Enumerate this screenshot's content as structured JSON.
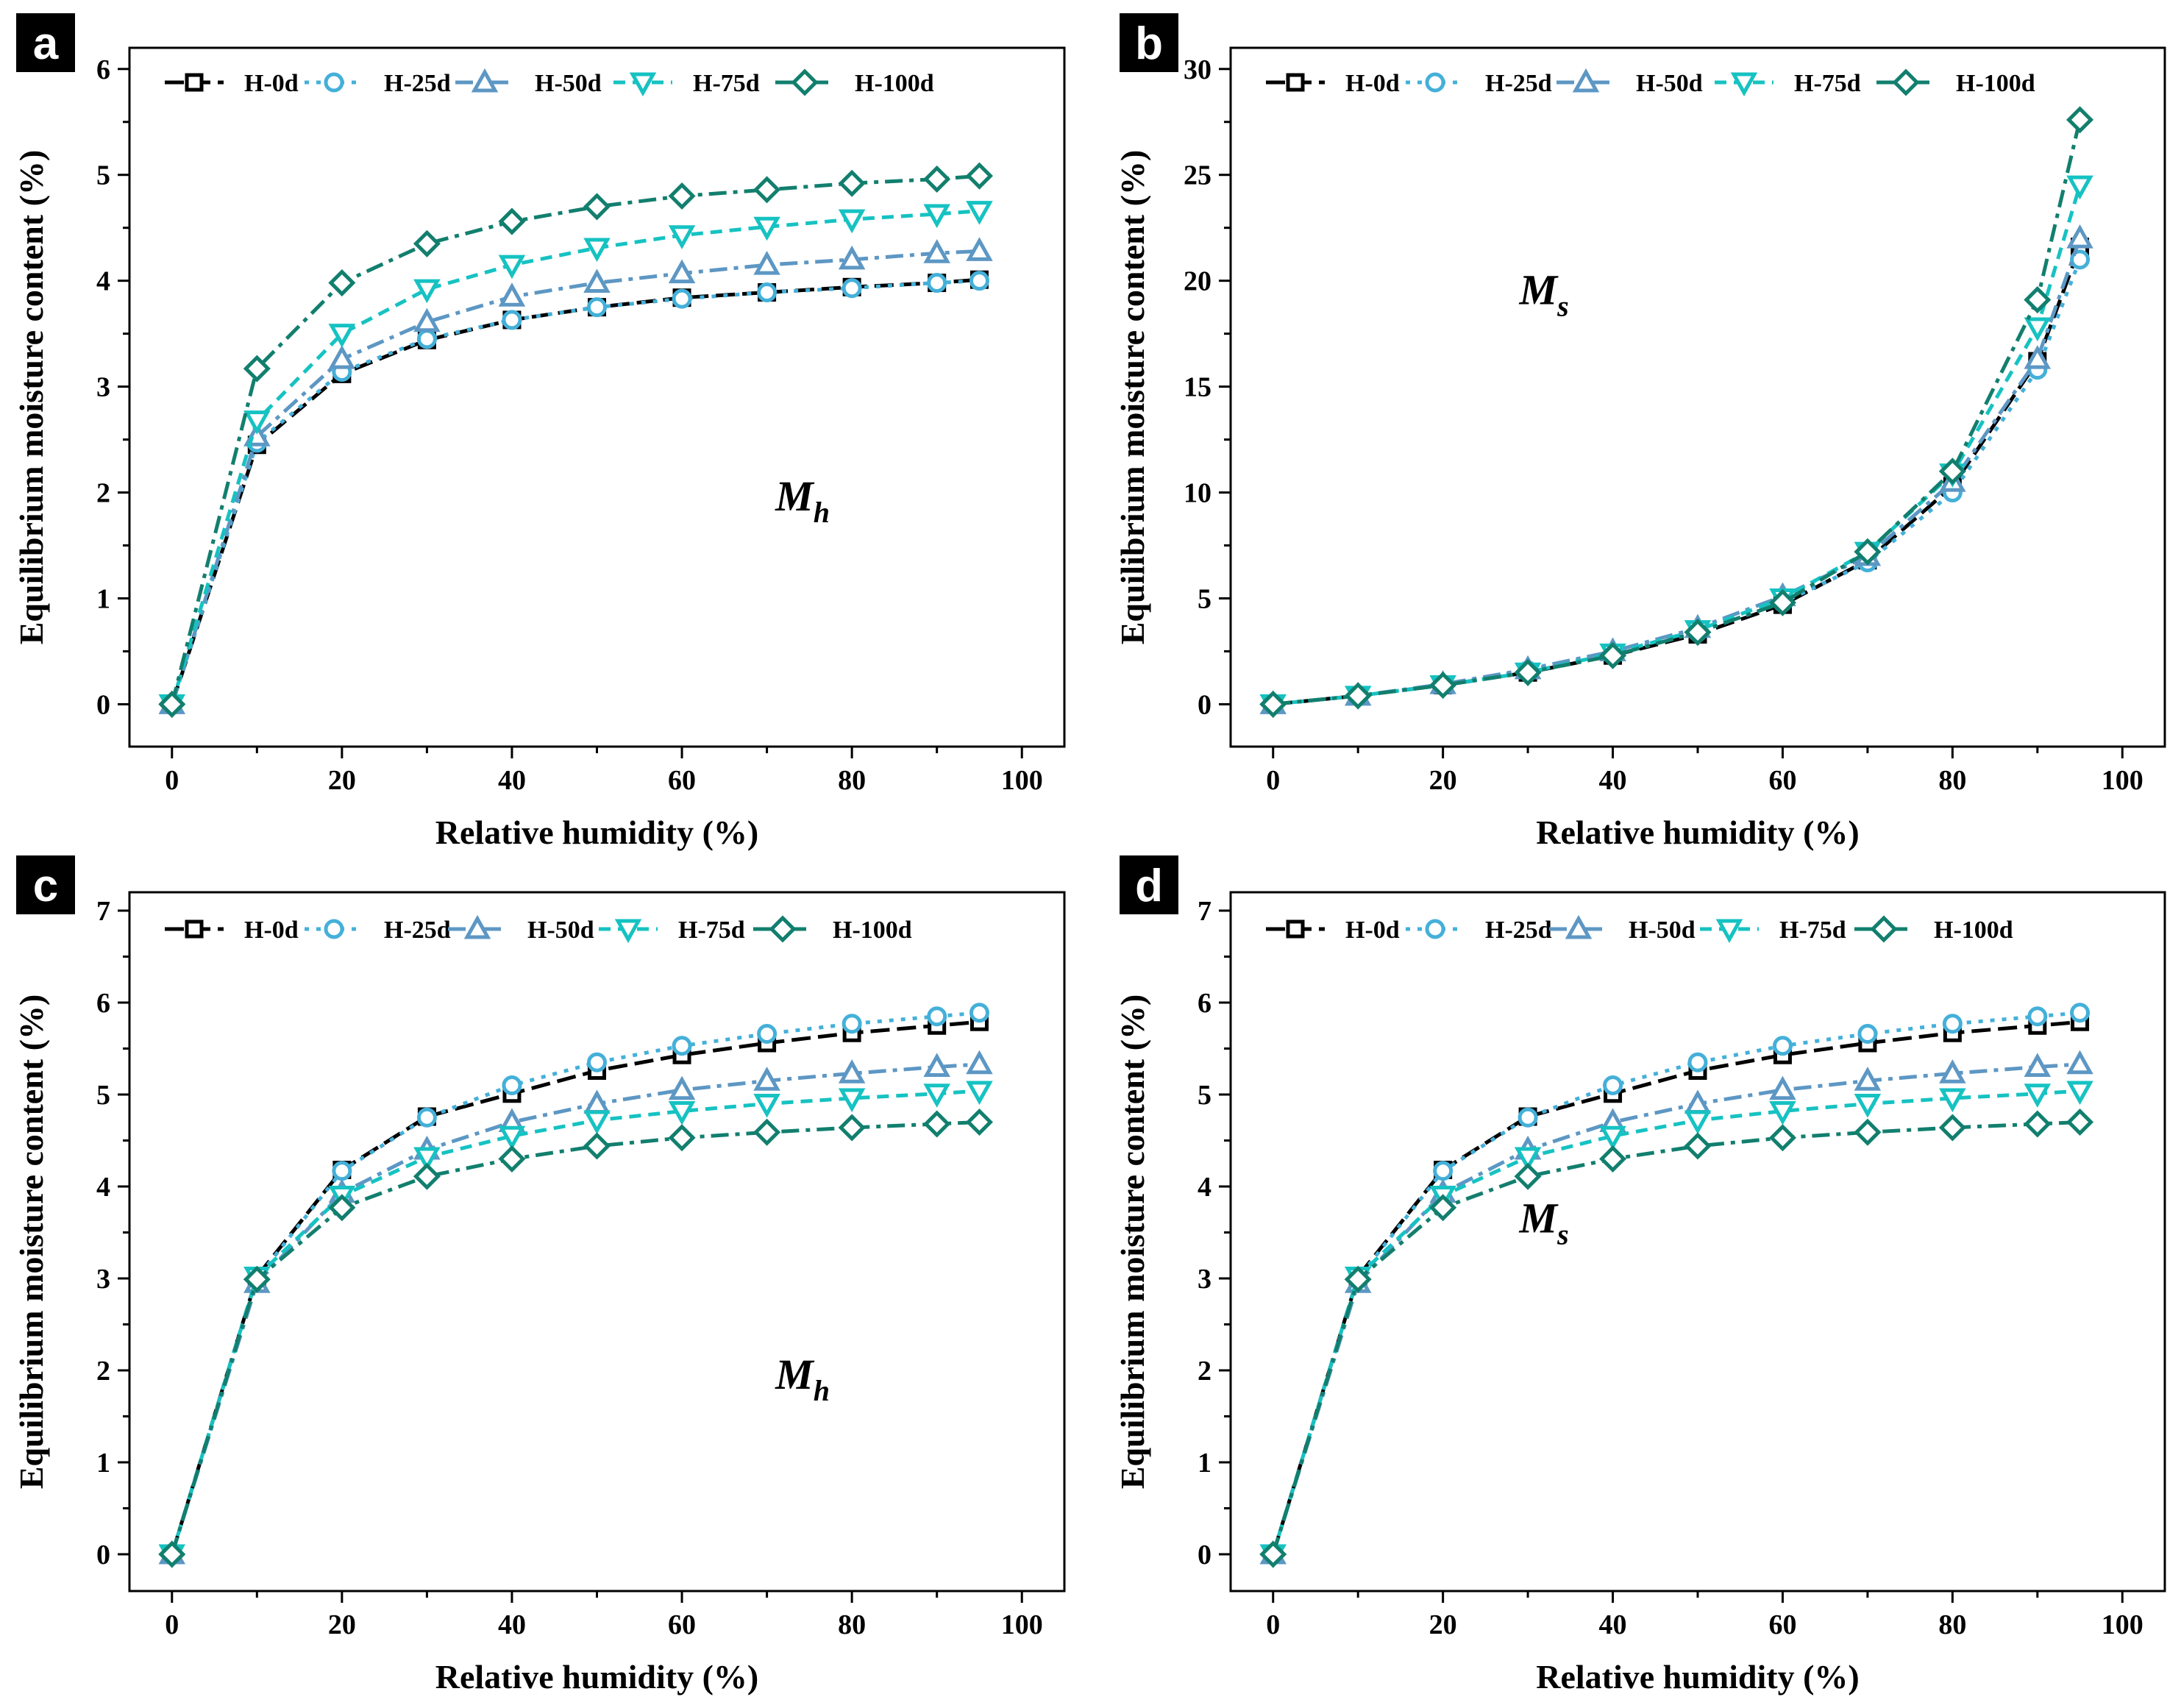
{
  "figure": {
    "colors": {
      "H-0d": "#000000",
      "H-25d": "#44b0d9",
      "H-50d": "#5d97c4",
      "H-75d": "#16c2c2",
      "H-100d": "#127f6e",
      "panel_label_bg": "#000000",
      "panel_label_text": "#ffffff",
      "axis": "#000000"
    },
    "series_styles": {
      "H-0d": {
        "marker": "square",
        "dash": "long-dash"
      },
      "H-25d": {
        "marker": "circle",
        "dash": "dotted"
      },
      "H-50d": {
        "marker": "triangle-up",
        "dash": "dash-dot"
      },
      "H-75d": {
        "marker": "triangle-down",
        "dash": "dashed"
      },
      "H-100d": {
        "marker": "diamond",
        "dash": "dash-dot"
      }
    }
  },
  "chart_data": [
    {
      "panel": "a",
      "type": "line",
      "xlabel": "Relative humidity (%)",
      "ylabel": "Equilibrium moisture content (%)",
      "xlim": [
        -5,
        105
      ],
      "ylim": [
        -0.4,
        6.2
      ],
      "xticks": [
        "0",
        "20",
        "40",
        "60",
        "80",
        "100"
      ],
      "yticks": [
        "0",
        "1",
        "2",
        "3",
        "4",
        "5",
        "6"
      ],
      "annotation": {
        "main": "M",
        "sub": "h",
        "anchor": [
          71,
          1.83
        ]
      },
      "x": [
        0,
        10,
        20,
        30,
        40,
        50,
        60,
        70,
        80,
        90,
        95
      ],
      "series": [
        {
          "name": "H-0d",
          "values": [
            0,
            2.45,
            3.12,
            3.44,
            3.63,
            3.75,
            3.84,
            3.89,
            3.94,
            3.98,
            4.01
          ]
        },
        {
          "name": "H-25d",
          "values": [
            0,
            2.47,
            3.14,
            3.45,
            3.63,
            3.75,
            3.83,
            3.89,
            3.93,
            3.98,
            4.0
          ]
        },
        {
          "name": "H-50d",
          "values": [
            0,
            2.53,
            3.26,
            3.61,
            3.85,
            3.98,
            4.07,
            4.15,
            4.2,
            4.26,
            4.28
          ]
        },
        {
          "name": "H-75d",
          "values": [
            0,
            2.68,
            3.5,
            3.92,
            4.15,
            4.31,
            4.43,
            4.51,
            4.58,
            4.63,
            4.66
          ]
        },
        {
          "name": "H-100d",
          "values": [
            0,
            3.17,
            3.98,
            4.35,
            4.56,
            4.7,
            4.8,
            4.86,
            4.92,
            4.96,
            4.99
          ]
        }
      ]
    },
    {
      "panel": "b",
      "type": "line",
      "xlabel": "Relative humidity (%)",
      "ylabel": "Equilibrium moisture content (%)",
      "xlim": [
        -5,
        105
      ],
      "ylim": [
        -2,
        31
      ],
      "xticks": [
        "0",
        "20",
        "40",
        "60",
        "80",
        "100"
      ],
      "yticks": [
        "0",
        "5",
        "10",
        "15",
        "20",
        "25",
        "30"
      ],
      "annotation": {
        "main": "M",
        "sub": "s",
        "anchor": [
          29,
          18.9
        ]
      },
      "x": [
        0,
        10,
        20,
        30,
        40,
        50,
        60,
        70,
        80,
        90,
        95
      ],
      "series": [
        {
          "name": "H-0d",
          "values": [
            0,
            0.4,
            0.9,
            1.5,
            2.3,
            3.3,
            4.7,
            6.8,
            10.3,
            16.2,
            21.6
          ]
        },
        {
          "name": "H-25d",
          "values": [
            0,
            0.4,
            0.9,
            1.6,
            2.4,
            3.4,
            4.8,
            6.7,
            10.0,
            15.8,
            21.0
          ]
        },
        {
          "name": "H-50d",
          "values": [
            0,
            0.4,
            0.95,
            1.65,
            2.5,
            3.6,
            5.1,
            7.0,
            10.5,
            16.3,
            22.0
          ]
        },
        {
          "name": "H-75d",
          "values": [
            0,
            0.4,
            0.9,
            1.5,
            2.4,
            3.5,
            5.0,
            7.2,
            10.9,
            17.8,
            24.5
          ]
        },
        {
          "name": "H-100d",
          "values": [
            0,
            0.4,
            0.9,
            1.5,
            2.3,
            3.4,
            4.8,
            7.2,
            11.0,
            19.1,
            27.6
          ]
        }
      ]
    },
    {
      "panel": "c",
      "type": "line",
      "xlabel": "Relative humidity (%)",
      "ylabel": "Equilibrium moisture content (%)",
      "xlim": [
        -5,
        105
      ],
      "ylim": [
        -0.4,
        7.2
      ],
      "xticks": [
        "0",
        "20",
        "40",
        "60",
        "80",
        "100"
      ],
      "yticks": [
        "0",
        "1",
        "2",
        "3",
        "4",
        "5",
        "6",
        "7"
      ],
      "annotation": {
        "main": "M",
        "sub": "h",
        "anchor": [
          71,
          1.8
        ]
      },
      "x": [
        0,
        10,
        20,
        30,
        40,
        50,
        60,
        70,
        80,
        90,
        95
      ],
      "series": [
        {
          "name": "H-0d",
          "values": [
            0,
            3.02,
            4.18,
            4.76,
            5.01,
            5.26,
            5.43,
            5.56,
            5.67,
            5.75,
            5.79
          ]
        },
        {
          "name": "H-25d",
          "values": [
            0,
            3.0,
            4.17,
            4.75,
            5.1,
            5.35,
            5.53,
            5.66,
            5.77,
            5.85,
            5.89
          ]
        },
        {
          "name": "H-50d",
          "values": [
            0,
            2.95,
            3.93,
            4.4,
            4.7,
            4.9,
            5.05,
            5.15,
            5.23,
            5.3,
            5.33
          ]
        },
        {
          "name": "H-75d",
          "values": [
            0,
            3.02,
            3.9,
            4.32,
            4.55,
            4.72,
            4.82,
            4.9,
            4.96,
            5.01,
            5.04
          ]
        },
        {
          "name": "H-100d",
          "values": [
            0,
            2.99,
            3.77,
            4.11,
            4.3,
            4.44,
            4.53,
            4.59,
            4.64,
            4.68,
            4.7
          ]
        }
      ]
    },
    {
      "panel": "d",
      "type": "line",
      "xlabel": "Relative humidity (%)",
      "ylabel": "Equilibrium moisture content (%)",
      "xlim": [
        -5,
        105
      ],
      "ylim": [
        -0.4,
        7.2
      ],
      "xticks": [
        "0",
        "20",
        "40",
        "60",
        "80",
        "100"
      ],
      "yticks": [
        "0",
        "1",
        "2",
        "3",
        "4",
        "5",
        "6",
        "7"
      ],
      "annotation": {
        "main": "M",
        "sub": "s",
        "anchor": [
          29,
          3.5
        ]
      },
      "x": [
        0,
        10,
        20,
        30,
        40,
        50,
        60,
        70,
        80,
        90,
        95
      ],
      "series": [
        {
          "name": "H-0d",
          "values": [
            0,
            3.02,
            4.18,
            4.76,
            5.01,
            5.26,
            5.43,
            5.56,
            5.67,
            5.75,
            5.79
          ]
        },
        {
          "name": "H-25d",
          "values": [
            0,
            3.0,
            4.17,
            4.75,
            5.1,
            5.35,
            5.53,
            5.66,
            5.77,
            5.85,
            5.89
          ]
        },
        {
          "name": "H-50d",
          "values": [
            0,
            2.95,
            3.93,
            4.4,
            4.7,
            4.9,
            5.05,
            5.15,
            5.23,
            5.3,
            5.33
          ]
        },
        {
          "name": "H-75d",
          "values": [
            0,
            3.02,
            3.9,
            4.32,
            4.55,
            4.72,
            4.82,
            4.9,
            4.96,
            5.01,
            5.04
          ]
        },
        {
          "name": "H-100d",
          "values": [
            0,
            2.99,
            3.77,
            4.11,
            4.3,
            4.44,
            4.53,
            4.59,
            4.64,
            4.68,
            4.7
          ]
        }
      ]
    }
  ]
}
